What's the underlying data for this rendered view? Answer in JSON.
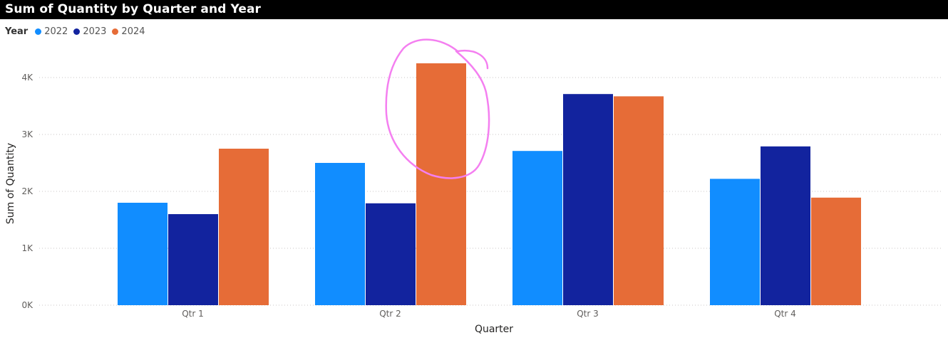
{
  "chart_data": {
    "type": "bar",
    "title": "Sum of Quantity by Quarter and Year",
    "legend_title": "Year",
    "legend_position": "top-left",
    "xlabel": "Quarter",
    "ylabel": "Sum of Quantity",
    "categories": [
      "Qtr 1",
      "Qtr 2",
      "Qtr 3",
      "Qtr 4"
    ],
    "series": [
      {
        "name": "2022",
        "color": "#118DFF",
        "values": [
          1800,
          2500,
          2710,
          2220
        ]
      },
      {
        "name": "2023",
        "color": "#12239E",
        "values": [
          1600,
          1790,
          3710,
          2790
        ]
      },
      {
        "name": "2024",
        "color": "#E66C37",
        "values": [
          2750,
          4250,
          3670,
          1890
        ]
      }
    ],
    "ylim": [
      0,
      4500
    ],
    "yticks": [
      0,
      1000,
      2000,
      3000,
      4000
    ],
    "ytick_labels": [
      "0K",
      "1K",
      "2K",
      "3K",
      "4K"
    ],
    "grid": true,
    "annotation": {
      "shape": "hand-drawn circle",
      "color": "#F47FF0",
      "target": "Qtr 2 / 2024"
    }
  }
}
